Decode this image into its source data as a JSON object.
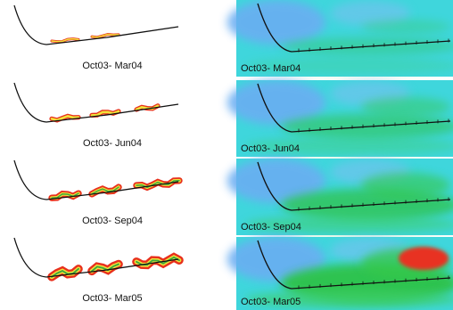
{
  "left_panels": [
    {
      "label": "Oct03- Mar04"
    },
    {
      "label": "Oct03- Jun04"
    },
    {
      "label": "Oct03- Sep04"
    },
    {
      "label": "Oct03- Mar05"
    }
  ],
  "right_panels": [
    {
      "label": "Oct03- Mar04"
    },
    {
      "label": "Oct03- Jun04"
    },
    {
      "label": "Oct03- Sep04"
    },
    {
      "label": "Oct03- Mar05"
    }
  ]
}
